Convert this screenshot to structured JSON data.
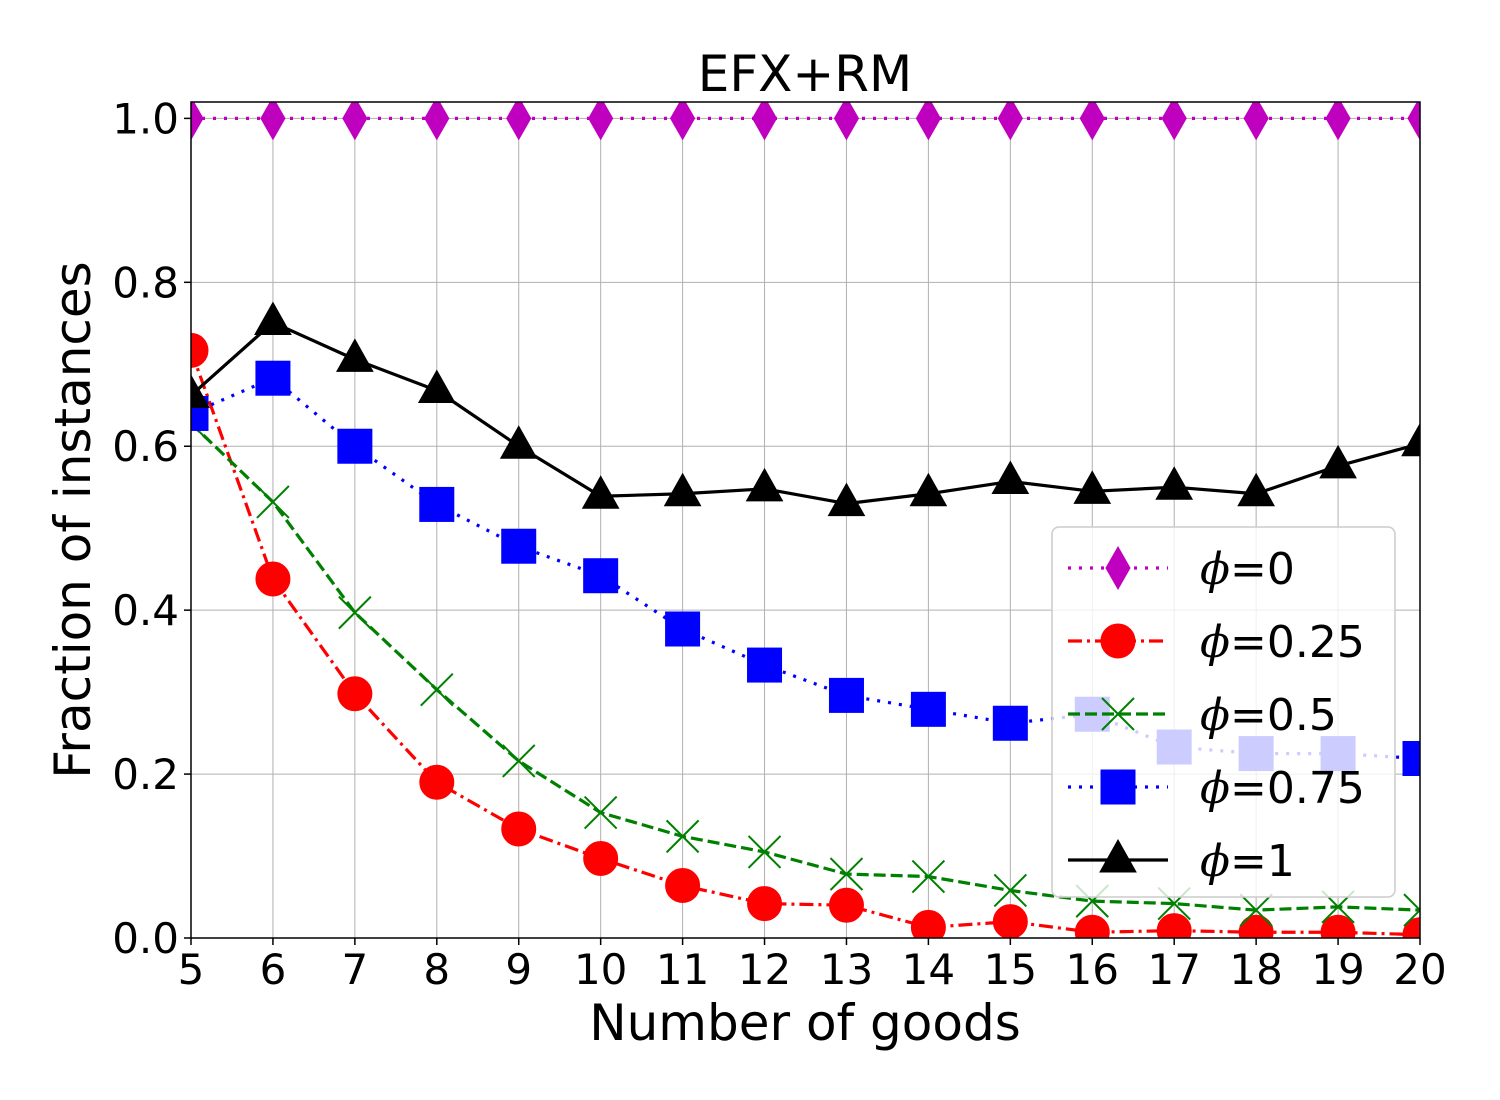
{
  "chart_data": {
    "type": "line",
    "title": "EFX+RM",
    "xlabel": "Number of goods",
    "ylabel": "Fraction of instances",
    "xlim": [
      5,
      20
    ],
    "ylim": [
      0,
      1.02
    ],
    "x_ticks": [
      "5",
      "6",
      "7",
      "8",
      "9",
      "10",
      "11",
      "12",
      "13",
      "14",
      "15",
      "16",
      "17",
      "18",
      "19",
      "20"
    ],
    "y_ticks": [
      "0.0",
      "0.2",
      "0.4",
      "0.6",
      "0.8",
      "1.0"
    ],
    "grid": true,
    "legend_position": "lower-right",
    "x": [
      5,
      6,
      7,
      8,
      9,
      10,
      11,
      12,
      13,
      14,
      15,
      16,
      17,
      18,
      19,
      20
    ],
    "series": [
      {
        "name": "ϕ=0",
        "symbol": "ϕ",
        "suffix": "=0",
        "color": "#bf00bf",
        "marker": "diamond",
        "line_style": "dotted",
        "values": [
          1.0,
          1.0,
          1.0,
          1.0,
          1.0,
          1.0,
          1.0,
          1.0,
          1.0,
          1.0,
          1.0,
          1.0,
          1.0,
          1.0,
          1.0,
          1.0
        ]
      },
      {
        "name": "ϕ=0.25",
        "symbol": "ϕ",
        "suffix": "=0.25",
        "color": "#ff0000",
        "marker": "circle",
        "line_style": "dashdot",
        "values": [
          0.717,
          0.438,
          0.298,
          0.19,
          0.133,
          0.097,
          0.064,
          0.042,
          0.04,
          0.013,
          0.02,
          0.007,
          0.009,
          0.007,
          0.007,
          0.004
        ]
      },
      {
        "name": "ϕ=0.5",
        "symbol": "ϕ",
        "suffix": "=0.5",
        "color": "#008000",
        "marker": "x",
        "line_style": "dashed",
        "values": [
          0.628,
          0.532,
          0.397,
          0.303,
          0.216,
          0.153,
          0.124,
          0.105,
          0.078,
          0.075,
          0.058,
          0.045,
          0.042,
          0.034,
          0.038,
          0.034
        ]
      },
      {
        "name": "ϕ=0.75",
        "symbol": "ϕ",
        "suffix": "=0.75",
        "color": "#0000ff",
        "marker": "square",
        "line_style": "dotted",
        "values": [
          0.64,
          0.683,
          0.6,
          0.529,
          0.478,
          0.442,
          0.377,
          0.333,
          0.296,
          0.279,
          0.262,
          0.273,
          0.233,
          0.225,
          0.225,
          0.219
        ]
      },
      {
        "name": "ϕ=1",
        "symbol": "ϕ",
        "suffix": "=1",
        "color": "#000000",
        "marker": "triangle",
        "line_style": "solid",
        "values": [
          0.662,
          0.751,
          0.706,
          0.668,
          0.6,
          0.539,
          0.542,
          0.548,
          0.53,
          0.542,
          0.557,
          0.545,
          0.55,
          0.542,
          0.576,
          0.603
        ]
      }
    ]
  }
}
